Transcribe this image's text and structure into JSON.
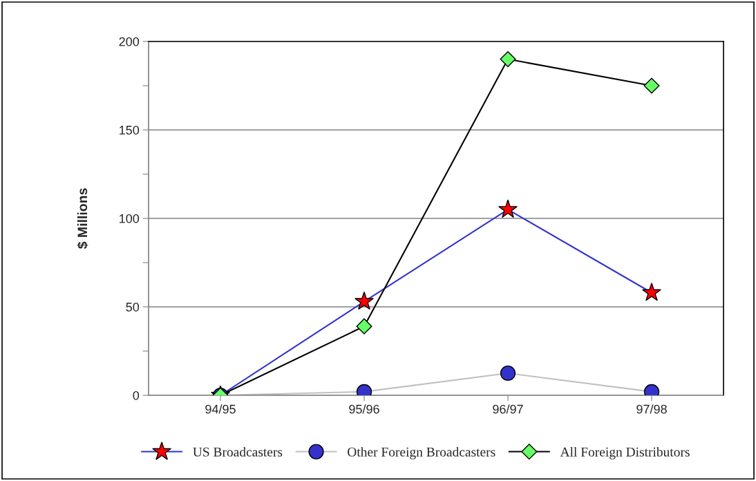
{
  "chart_data": {
    "type": "line",
    "ylabel": "$ Millions",
    "categories": [
      "94/95",
      "95/96",
      "96/97",
      "97/98"
    ],
    "series": [
      {
        "name": "US Broadcasters",
        "color": "#ff0000",
        "marker": "star",
        "values": [
          0,
          53,
          105,
          58
        ]
      },
      {
        "name": "Other Foreign Broadcasters",
        "color": "#3333cc",
        "marker": "circle",
        "values": [
          0,
          2,
          12.5,
          2
        ]
      },
      {
        "name": "All Foreign Distributors",
        "color": "#66ff66",
        "marker": "diamond",
        "values": [
          0,
          39,
          190,
          175
        ]
      }
    ],
    "ylim": [
      0,
      200
    ],
    "yticks": [
      0,
      {
        "value": 25,
        "label": null
      },
      50,
      {
        "value": 75,
        "label": null
      },
      100,
      {
        "value": 125,
        "label": null
      },
      150,
      {
        "value": 175,
        "label": null
      },
      200
    ],
    "grid": "y",
    "legend": "bottom"
  }
}
